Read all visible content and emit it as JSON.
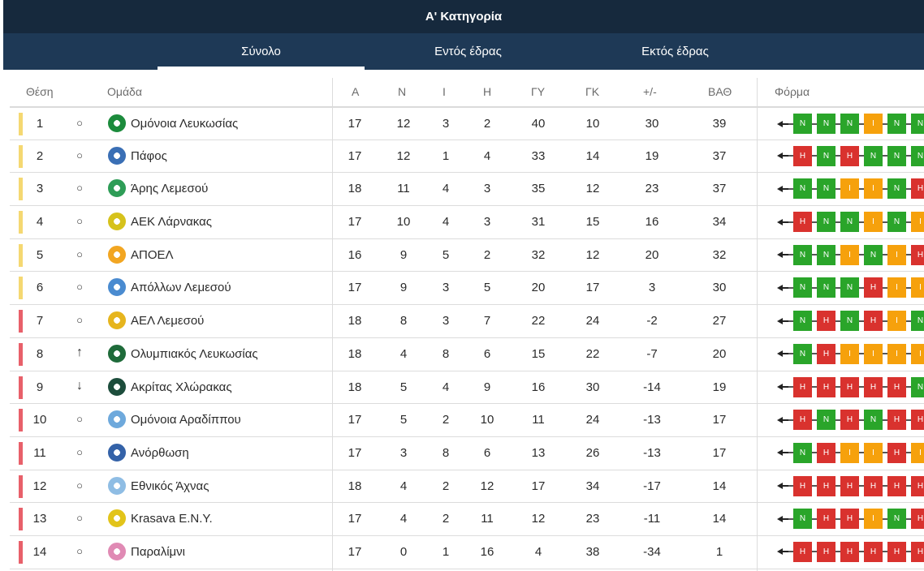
{
  "title": "Α' Κατηγορία",
  "tabs": [
    {
      "label": "Σύνολο",
      "active": true
    },
    {
      "label": "Εντός έδρας",
      "active": false
    },
    {
      "label": "Εκτός έδρας",
      "active": false
    }
  ],
  "columns": {
    "pos": "Θέση",
    "team": "Ομάδα",
    "played": "Α",
    "won": "Ν",
    "draw": "Ι",
    "lost": "Η",
    "gf": "ΓΥ",
    "ga": "ΓΚ",
    "diff": "+/-",
    "pts": "ΒΑΘ",
    "form": "Φόρμα"
  },
  "colors": {
    "header": "#1e3956",
    "title_bar": "#16293d",
    "zone_yellow": "#f5d872",
    "zone_red": "#e8606a",
    "win": "#2aa52a",
    "loss": "#d9322e",
    "draw": "#f6a10c"
  },
  "rows": [
    {
      "pos": "1",
      "trend": "○",
      "trend_icon": "circle-icon",
      "logo_color": "#1c8b3c",
      "team": "Ομόνοια Λευκωσίας",
      "played": "17",
      "won": "12",
      "draw": "3",
      "lost": "2",
      "gf": "40",
      "ga": "10",
      "diff": "30",
      "pts": "39",
      "zone": "yellow",
      "form": [
        "N",
        "N",
        "N",
        "I",
        "N",
        "N"
      ]
    },
    {
      "pos": "2",
      "trend": "○",
      "trend_icon": "circle-icon",
      "logo_color": "#3a6fb5",
      "team": "Πάφος",
      "played": "17",
      "won": "12",
      "draw": "1",
      "lost": "4",
      "gf": "33",
      "ga": "14",
      "diff": "19",
      "pts": "37",
      "zone": "yellow",
      "form": [
        "H",
        "N",
        "H",
        "N",
        "N",
        "N"
      ]
    },
    {
      "pos": "3",
      "trend": "○",
      "trend_icon": "circle-icon",
      "logo_color": "#2e9d57",
      "team": "Άρης Λεμεσού",
      "played": "18",
      "won": "11",
      "draw": "4",
      "lost": "3",
      "gf": "35",
      "ga": "12",
      "diff": "23",
      "pts": "37",
      "zone": "yellow",
      "form": [
        "N",
        "N",
        "I",
        "I",
        "N",
        "H"
      ]
    },
    {
      "pos": "4",
      "trend": "○",
      "trend_icon": "circle-icon",
      "logo_color": "#d6c21c",
      "team": "ΑΕΚ Λάρνακας",
      "played": "17",
      "won": "10",
      "draw": "4",
      "lost": "3",
      "gf": "31",
      "ga": "15",
      "diff": "16",
      "pts": "34",
      "zone": "yellow",
      "form": [
        "H",
        "N",
        "N",
        "I",
        "N",
        "I"
      ]
    },
    {
      "pos": "5",
      "trend": "○",
      "trend_icon": "circle-icon",
      "logo_color": "#f2a622",
      "team": "ΑΠΟΕΛ",
      "played": "16",
      "won": "9",
      "draw": "5",
      "lost": "2",
      "gf": "32",
      "ga": "12",
      "diff": "20",
      "pts": "32",
      "zone": "yellow",
      "form": [
        "N",
        "N",
        "I",
        "N",
        "I",
        "H"
      ]
    },
    {
      "pos": "6",
      "trend": "○",
      "trend_icon": "circle-icon",
      "logo_color": "#4a8bd0",
      "team": "Απόλλων Λεμεσού",
      "played": "17",
      "won": "9",
      "draw": "3",
      "lost": "5",
      "gf": "20",
      "ga": "17",
      "diff": "3",
      "pts": "30",
      "zone": "yellow",
      "form": [
        "N",
        "N",
        "N",
        "H",
        "I",
        "I"
      ]
    },
    {
      "pos": "7",
      "trend": "○",
      "trend_icon": "circle-icon",
      "logo_color": "#e6b51e",
      "team": "ΑΕΛ Λεμεσού",
      "played": "18",
      "won": "8",
      "draw": "3",
      "lost": "7",
      "gf": "22",
      "ga": "24",
      "diff": "-2",
      "pts": "27",
      "zone": "red",
      "form": [
        "N",
        "H",
        "N",
        "H",
        "I",
        "N"
      ]
    },
    {
      "pos": "8",
      "trend": "↑",
      "trend_icon": "arrow-up-icon",
      "logo_color": "#1f6b3a",
      "team": "Ολυμπιακός Λευκωσίας",
      "played": "18",
      "won": "4",
      "draw": "8",
      "lost": "6",
      "gf": "15",
      "ga": "22",
      "diff": "-7",
      "pts": "20",
      "zone": "red",
      "form": [
        "N",
        "H",
        "I",
        "I",
        "I",
        "I"
      ]
    },
    {
      "pos": "9",
      "trend": "↓",
      "trend_icon": "arrow-down-icon",
      "logo_color": "#1d4d3c",
      "team": "Ακρίτας Χλώρακας",
      "played": "18",
      "won": "5",
      "draw": "4",
      "lost": "9",
      "gf": "16",
      "ga": "30",
      "diff": "-14",
      "pts": "19",
      "zone": "red",
      "form": [
        "H",
        "H",
        "H",
        "H",
        "H",
        "N"
      ]
    },
    {
      "pos": "10",
      "trend": "○",
      "trend_icon": "circle-icon",
      "logo_color": "#6ea9dc",
      "team": "Ομόνοια Αραδίππου",
      "played": "17",
      "won": "5",
      "draw": "2",
      "lost": "10",
      "gf": "11",
      "ga": "24",
      "diff": "-13",
      "pts": "17",
      "zone": "red",
      "form": [
        "H",
        "N",
        "H",
        "N",
        "H",
        "H"
      ]
    },
    {
      "pos": "11",
      "trend": "○",
      "trend_icon": "circle-icon",
      "logo_color": "#3462a8",
      "team": "Ανόρθωση",
      "played": "17",
      "won": "3",
      "draw": "8",
      "lost": "6",
      "gf": "13",
      "ga": "26",
      "diff": "-13",
      "pts": "17",
      "zone": "red",
      "form": [
        "N",
        "H",
        "I",
        "I",
        "H",
        "I"
      ]
    },
    {
      "pos": "12",
      "trend": "○",
      "trend_icon": "circle-icon",
      "logo_color": "#8fbde4",
      "team": "Εθνικός Άχνας",
      "played": "18",
      "won": "4",
      "draw": "2",
      "lost": "12",
      "gf": "17",
      "ga": "34",
      "diff": "-17",
      "pts": "14",
      "zone": "red",
      "form": [
        "H",
        "H",
        "H",
        "H",
        "H",
        "H"
      ]
    },
    {
      "pos": "13",
      "trend": "○",
      "trend_icon": "circle-icon",
      "logo_color": "#e2c41a",
      "team": "Krasava E.N.Y.",
      "played": "17",
      "won": "4",
      "draw": "2",
      "lost": "11",
      "gf": "12",
      "ga": "23",
      "diff": "-11",
      "pts": "14",
      "zone": "red",
      "form": [
        "N",
        "H",
        "H",
        "I",
        "N",
        "H"
      ]
    },
    {
      "pos": "14",
      "trend": "○",
      "trend_icon": "circle-icon",
      "logo_color": "#e08ab4",
      "team": "Παραλίμνι",
      "played": "17",
      "won": "0",
      "draw": "1",
      "lost": "16",
      "gf": "4",
      "ga": "38",
      "diff": "-34",
      "pts": "1",
      "zone": "red",
      "form": [
        "H",
        "H",
        "H",
        "H",
        "H",
        "H"
      ]
    }
  ]
}
